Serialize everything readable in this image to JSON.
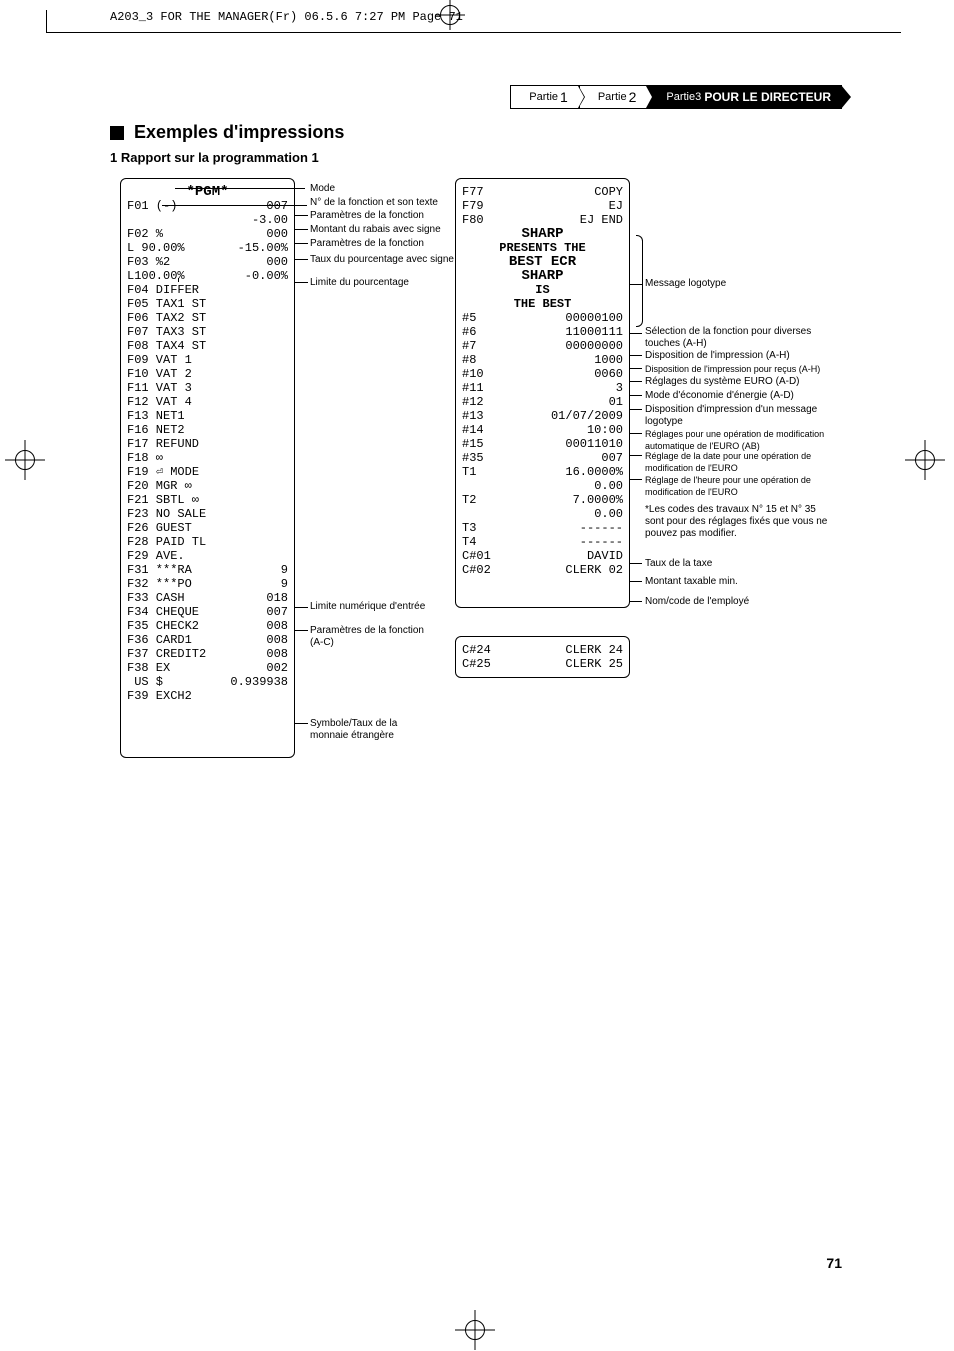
{
  "crop_header": "A203_3 FOR THE MANAGER(Fr)  06.5.6 7:27 PM  Page 71",
  "page_number": "71",
  "breadcrumb": {
    "part1_label": "Partie",
    "part1_num": "1",
    "part2_label": "Partie",
    "part2_num": "2",
    "part3_label": "Partie",
    "part3_num": "3",
    "part3_title": "POUR LE DIRECTEUR"
  },
  "heading": "Exemples d'impressions",
  "subheading": "1 Rapport sur la programmation 1",
  "receipt1": {
    "title": "*PGM*",
    "rows": [
      {
        "l": "F01 (-)",
        "r": "007"
      },
      {
        "l": "",
        "r": "-3.00"
      },
      {
        "l": "F02 %",
        "r": "000"
      },
      {
        "l": "L 90.00%",
        "r": "-15.00%"
      },
      {
        "l": "F03 %2",
        "r": "000"
      },
      {
        "l": "L100.00%",
        "r": "-0.00%"
      },
      {
        "l": "F04 DIFFER",
        "r": ""
      },
      {
        "l": "F05 TAX1 ST",
        "r": ""
      },
      {
        "l": "F06 TAX2 ST",
        "r": ""
      },
      {
        "l": "F07 TAX3 ST",
        "r": ""
      },
      {
        "l": "F08 TAX4 ST",
        "r": ""
      },
      {
        "l": "F09 VAT 1",
        "r": ""
      },
      {
        "l": "F10 VAT 2",
        "r": ""
      },
      {
        "l": "F11 VAT 3",
        "r": ""
      },
      {
        "l": "F12 VAT 4",
        "r": ""
      },
      {
        "l": "F13 NET1",
        "r": ""
      },
      {
        "l": "F16 NET2",
        "r": ""
      },
      {
        "l": "F17 REFUND",
        "r": ""
      },
      {
        "l": "F18 ∞",
        "r": ""
      },
      {
        "l": "F19 ⏎ MODE",
        "r": ""
      },
      {
        "l": "F20 MGR ∞",
        "r": ""
      },
      {
        "l": "F21 SBTL ∞",
        "r": ""
      },
      {
        "l": "F23 NO SALE",
        "r": ""
      },
      {
        "l": "F26 GUEST",
        "r": ""
      },
      {
        "l": "F28 PAID TL",
        "r": ""
      },
      {
        "l": "F29 AVE.",
        "r": ""
      },
      {
        "l": "F31 ***RA",
        "r": "9"
      },
      {
        "l": "F32 ***PO",
        "r": "9"
      },
      {
        "l": "F33 CASH",
        "r": "018"
      },
      {
        "l": "F34 CHEQUE",
        "r": "007"
      },
      {
        "l": "F35 CHECK2",
        "r": "008"
      },
      {
        "l": "F36 CARD1",
        "r": "008"
      },
      {
        "l": "F37 CREDIT2",
        "r": "008"
      },
      {
        "l": "F38 EX",
        "r": "002"
      },
      {
        "l": " US $",
        "r": "0.939938"
      },
      {
        "l": "F39 EXCH2",
        "r": ""
      }
    ]
  },
  "receipt2": {
    "rows_top": [
      {
        "l": "F77",
        "r": "COPY"
      },
      {
        "l": "F79",
        "r": "EJ"
      },
      {
        "l": "F80",
        "r": "EJ END"
      }
    ],
    "logo_lines": [
      "SHARP",
      "PRESENTS THE",
      "BEST ECR",
      "SHARP",
      "IS",
      "THE BEST"
    ],
    "hash_rows": [
      {
        "l": "#5",
        "r": "00000100"
      },
      {
        "l": "#6",
        "r": "11000111"
      },
      {
        "l": "#7",
        "r": "00000000"
      },
      {
        "l": "#8",
        "r": "1000"
      },
      {
        "l": "#10",
        "r": "0060"
      },
      {
        "l": "#11",
        "r": "3"
      },
      {
        "l": "#12",
        "r": "01"
      },
      {
        "l": "#13",
        "r": "01/07/2009"
      },
      {
        "l": "#14",
        "r": "10:00"
      },
      {
        "l": "#15",
        "r": "00011010"
      },
      {
        "l": "#35",
        "r": "007"
      },
      {
        "l": "T1",
        "r": "16.0000%"
      },
      {
        "l": "",
        "r": "0.00"
      },
      {
        "l": "T2",
        "r": "7.0000%"
      },
      {
        "l": "",
        "r": "0.00"
      },
      {
        "l": "T3",
        "r": "------"
      },
      {
        "l": "T4",
        "r": "------"
      },
      {
        "l": "C#01",
        "r": "DAVID"
      },
      {
        "l": "C#02",
        "r": "CLERK 02"
      }
    ]
  },
  "receipt3": {
    "rows": [
      {
        "l": "C#24",
        "r": "CLERK 24"
      },
      {
        "l": "C#25",
        "r": "CLERK 25"
      }
    ]
  },
  "annotations_left": {
    "mode": "Mode",
    "fn_no": "N° de la fonction et son texte",
    "fn_params": "Paramètres de la fonction",
    "discount_sign": "Montant du rabais avec signe",
    "fn_params2": "Paramètres de la fonction",
    "pct_sign": "Taux du pourcentage avec signe",
    "pct_limit": "Limite du pourcentage",
    "num_limit": "Limite numérique d'entrée",
    "fn_params_ac": "Paramètres de la fonction (A-C)",
    "symbol_rate": "Symbole/Taux de la monnaie étrangère"
  },
  "annotations_right": {
    "logotype": "Message logotype",
    "fn_select": "Sélection de la fonction pour diverses touches (A-H)",
    "print_ah": "Disposition de l'impression (A-H)",
    "print_rec": "Disposition de l'impression pour reçus (A-H)",
    "euro_sys": "Réglages du système EURO (A-D)",
    "energy": "Mode d'économie d'énergie (A-D)",
    "print_logo": "Disposition d'impression d'un message logotype",
    "euro_mod": "Réglages pour une opération de modification automatique de l'EURO (AB)",
    "date_mod": "Réglage de la date pour une opération de modification de l'EURO",
    "time_mod": "Réglage de l'heure pour une opération de modification de l'EURO",
    "note": "*Les codes des travaux N° 15 et N° 35 sont pour des réglages fixés que vous ne pouvez pas modifier.",
    "tax_rate": "Taux de la taxe",
    "tax_min": "Montant taxable min.",
    "clerk": "Nom/code de l'employé"
  }
}
